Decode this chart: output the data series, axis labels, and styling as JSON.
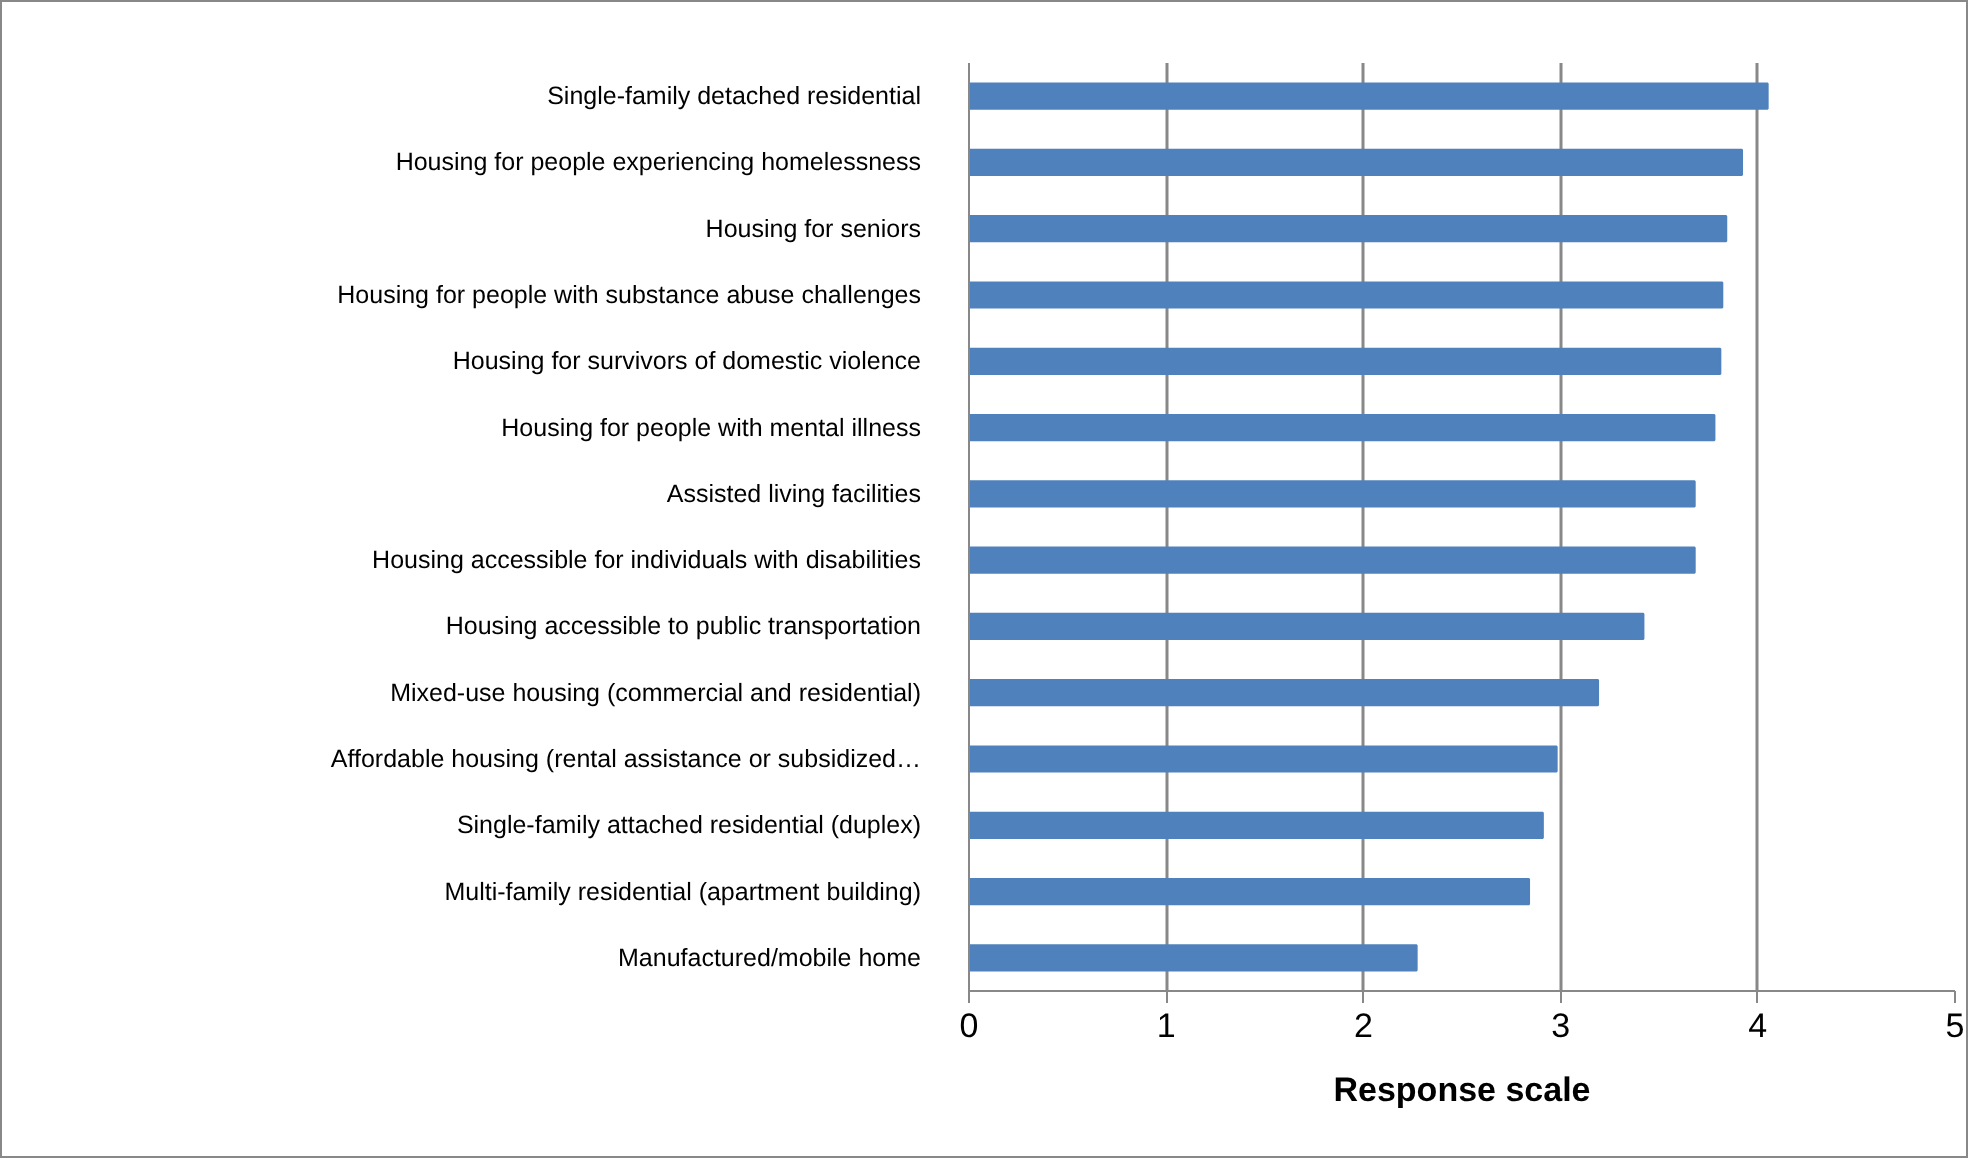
{
  "chart_data": {
    "type": "bar",
    "orientation": "horizontal",
    "xlabel": "Response scale",
    "categories": [
      "Single-family detached residential",
      "Housing for people experiencing homelessness",
      "Housing for seniors",
      "Housing for people with substance abuse challenges",
      "Housing for survivors of domestic violence",
      "Housing for people with mental illness",
      "Assisted living facilities",
      "Housing accessible for individuals with disabilities",
      "Housing accessible to public transportation",
      "Mixed-use housing (commercial and residential)",
      "Affordable housing (rental assistance or subsidized…",
      "Single-family attached residential (duplex)",
      "Multi-family residential (apartment building)",
      "Manufactured/mobile home"
    ],
    "values": [
      4.05,
      3.92,
      3.84,
      3.82,
      3.81,
      3.78,
      3.68,
      3.68,
      3.42,
      3.19,
      2.98,
      2.91,
      2.84,
      2.27
    ],
    "color": "#4f81bd",
    "xlim": [
      0,
      5
    ],
    "xticks": [
      0,
      1,
      2,
      3,
      4,
      5
    ],
    "grid": "x"
  }
}
